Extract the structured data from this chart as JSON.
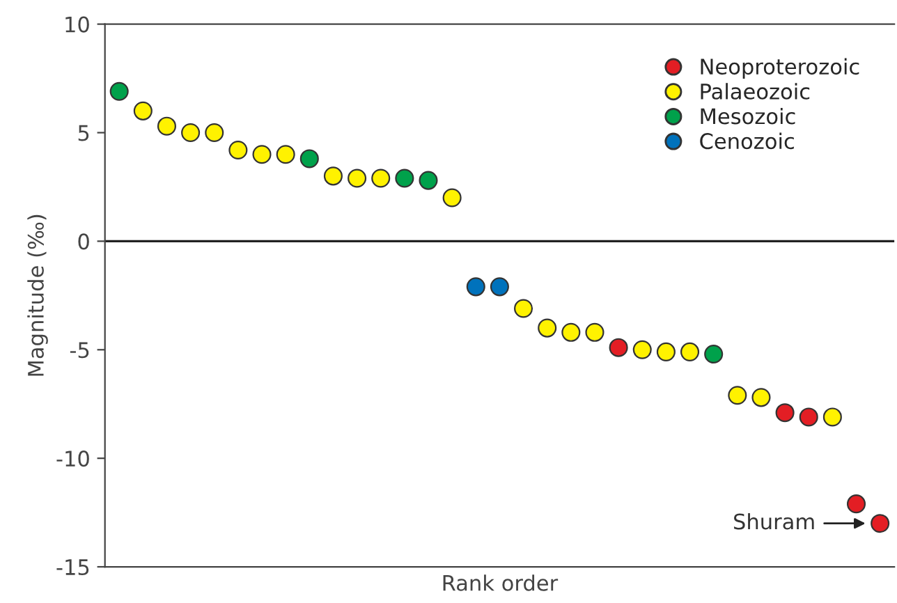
{
  "chart_data": {
    "type": "scatter",
    "xlabel": "Rank order",
    "ylabel": "Magnitude (‰)",
    "categories": [
      null,
      null,
      null,
      null,
      null,
      null,
      null,
      null,
      null,
      null,
      null,
      null,
      null,
      null,
      null,
      null,
      null,
      null,
      null,
      null,
      null,
      null,
      null,
      null,
      null,
      null,
      null,
      null,
      null,
      null,
      null,
      null,
      null
    ],
    "series": [
      {
        "name": "Neoproterozoic",
        "color": "#e31e24",
        "values": [
          null,
          null,
          null,
          null,
          null,
          null,
          null,
          null,
          null,
          null,
          null,
          null,
          null,
          null,
          null,
          null,
          null,
          null,
          null,
          null,
          null,
          -4.9,
          null,
          null,
          null,
          null,
          null,
          null,
          -7.9,
          -8.1,
          null,
          -12.1,
          -13.0
        ]
      },
      {
        "name": "Palaeozoic",
        "color": "#fff200",
        "values": [
          null,
          6.0,
          5.3,
          5.0,
          5.0,
          4.2,
          4.0,
          4.0,
          null,
          3.0,
          2.9,
          2.9,
          null,
          null,
          2.0,
          null,
          null,
          -3.1,
          -4.0,
          -4.2,
          -4.2,
          null,
          -5.0,
          -5.1,
          -5.1,
          null,
          -7.1,
          -7.2,
          null,
          null,
          -8.1,
          null,
          null
        ]
      },
      {
        "name": "Mesozoic",
        "color": "#00a14b",
        "values": [
          6.9,
          null,
          null,
          null,
          null,
          null,
          null,
          null,
          3.8,
          null,
          null,
          null,
          2.9,
          2.8,
          null,
          null,
          null,
          null,
          null,
          null,
          null,
          null,
          null,
          null,
          null,
          -5.2,
          null,
          null,
          null,
          null,
          null,
          null,
          null
        ]
      },
      {
        "name": "Cenozoic",
        "color": "#0072bc",
        "values": [
          null,
          null,
          null,
          null,
          null,
          null,
          null,
          null,
          null,
          null,
          null,
          null,
          null,
          null,
          null,
          -2.1,
          -2.1,
          null,
          null,
          null,
          null,
          null,
          null,
          null,
          null,
          null,
          null,
          null,
          null,
          null,
          null,
          null,
          null
        ]
      }
    ],
    "ylim": [
      -15,
      10
    ],
    "yticks": [
      -15,
      -10,
      -5,
      0,
      5,
      10
    ],
    "ref_lines": [
      {
        "axis": "y",
        "value": 0
      }
    ],
    "annotations": [
      "Shuram"
    ],
    "legend": "top right",
    "marker": "circle",
    "grid": false,
    "tick_labels": "y"
  }
}
